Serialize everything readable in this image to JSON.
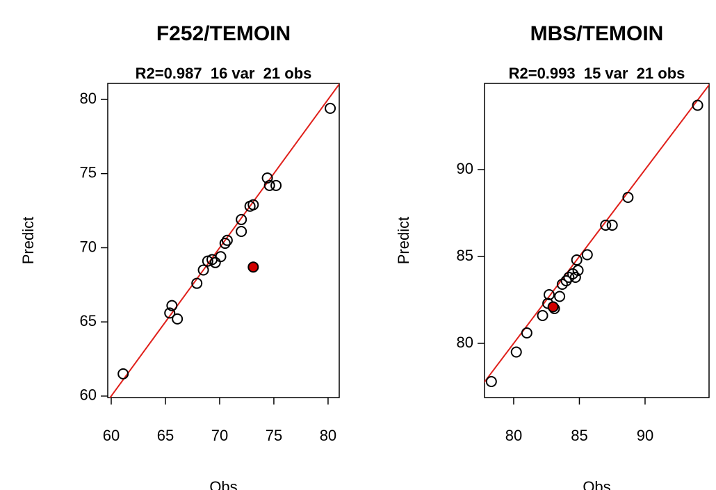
{
  "chart_data": [
    {
      "type": "scatter",
      "title": "F252/TEMOIN",
      "subtitle": "R2=0.987  16 var  21 obs",
      "x_label": "Obs",
      "y_label": "Predict",
      "xlim": [
        59.68,
        81.03
      ],
      "ylim": [
        59.9,
        81.08
      ],
      "xticks": [
        60,
        65,
        70,
        75,
        80
      ],
      "yticks": [
        60,
        65,
        70,
        75,
        80
      ],
      "identity_line": true,
      "identity_line_color": "#e0201b",
      "series": [
        {
          "color": "#000000",
          "filled": false,
          "x": [
            61.1,
            65.4,
            65.6,
            66.1,
            67.9,
            68.5,
            68.9,
            69.3,
            69.6,
            70.1,
            70.5,
            70.7,
            72.0,
            72.0,
            72.8,
            73.1,
            74.4,
            74.6,
            75.2,
            80.2
          ],
          "values": [
            61.5,
            65.6,
            66.1,
            65.2,
            67.6,
            68.5,
            69.1,
            69.2,
            69.0,
            69.4,
            70.3,
            70.5,
            71.1,
            71.9,
            72.8,
            72.9,
            74.7,
            74.2,
            74.2,
            79.4
          ]
        },
        {
          "color": "#d10000",
          "filled": true,
          "x": [
            73.1
          ],
          "values": [
            68.7
          ]
        }
      ]
    },
    {
      "type": "scatter",
      "title": "MBS/TEMOIN",
      "subtitle": "R2=0.993  15 var  21 obs",
      "x_label": "Obs",
      "y_label": "Predict",
      "xlim": [
        77.78,
        94.87
      ],
      "ylim": [
        76.88,
        94.96
      ],
      "xticks": [
        80,
        85,
        90
      ],
      "yticks": [
        80,
        85,
        90
      ],
      "identity_line": true,
      "identity_line_color": "#e0201b",
      "series": [
        {
          "color": "#000000",
          "filled": false,
          "x": [
            78.3,
            80.2,
            81.0,
            82.2,
            82.6,
            82.7,
            83.1,
            83.5,
            83.7,
            84.0,
            84.2,
            84.5,
            84.7,
            84.9,
            84.8,
            85.6,
            87.0,
            87.5,
            88.7,
            94.0
          ],
          "values": [
            77.8,
            79.5,
            80.6,
            81.6,
            82.3,
            82.8,
            82.0,
            82.7,
            83.4,
            83.6,
            83.8,
            84.0,
            83.8,
            84.2,
            84.8,
            85.1,
            86.8,
            86.8,
            88.4,
            93.7
          ]
        },
        {
          "color": "#d10000",
          "filled": true,
          "x": [
            83.0
          ],
          "values": [
            82.1
          ]
        }
      ]
    }
  ]
}
